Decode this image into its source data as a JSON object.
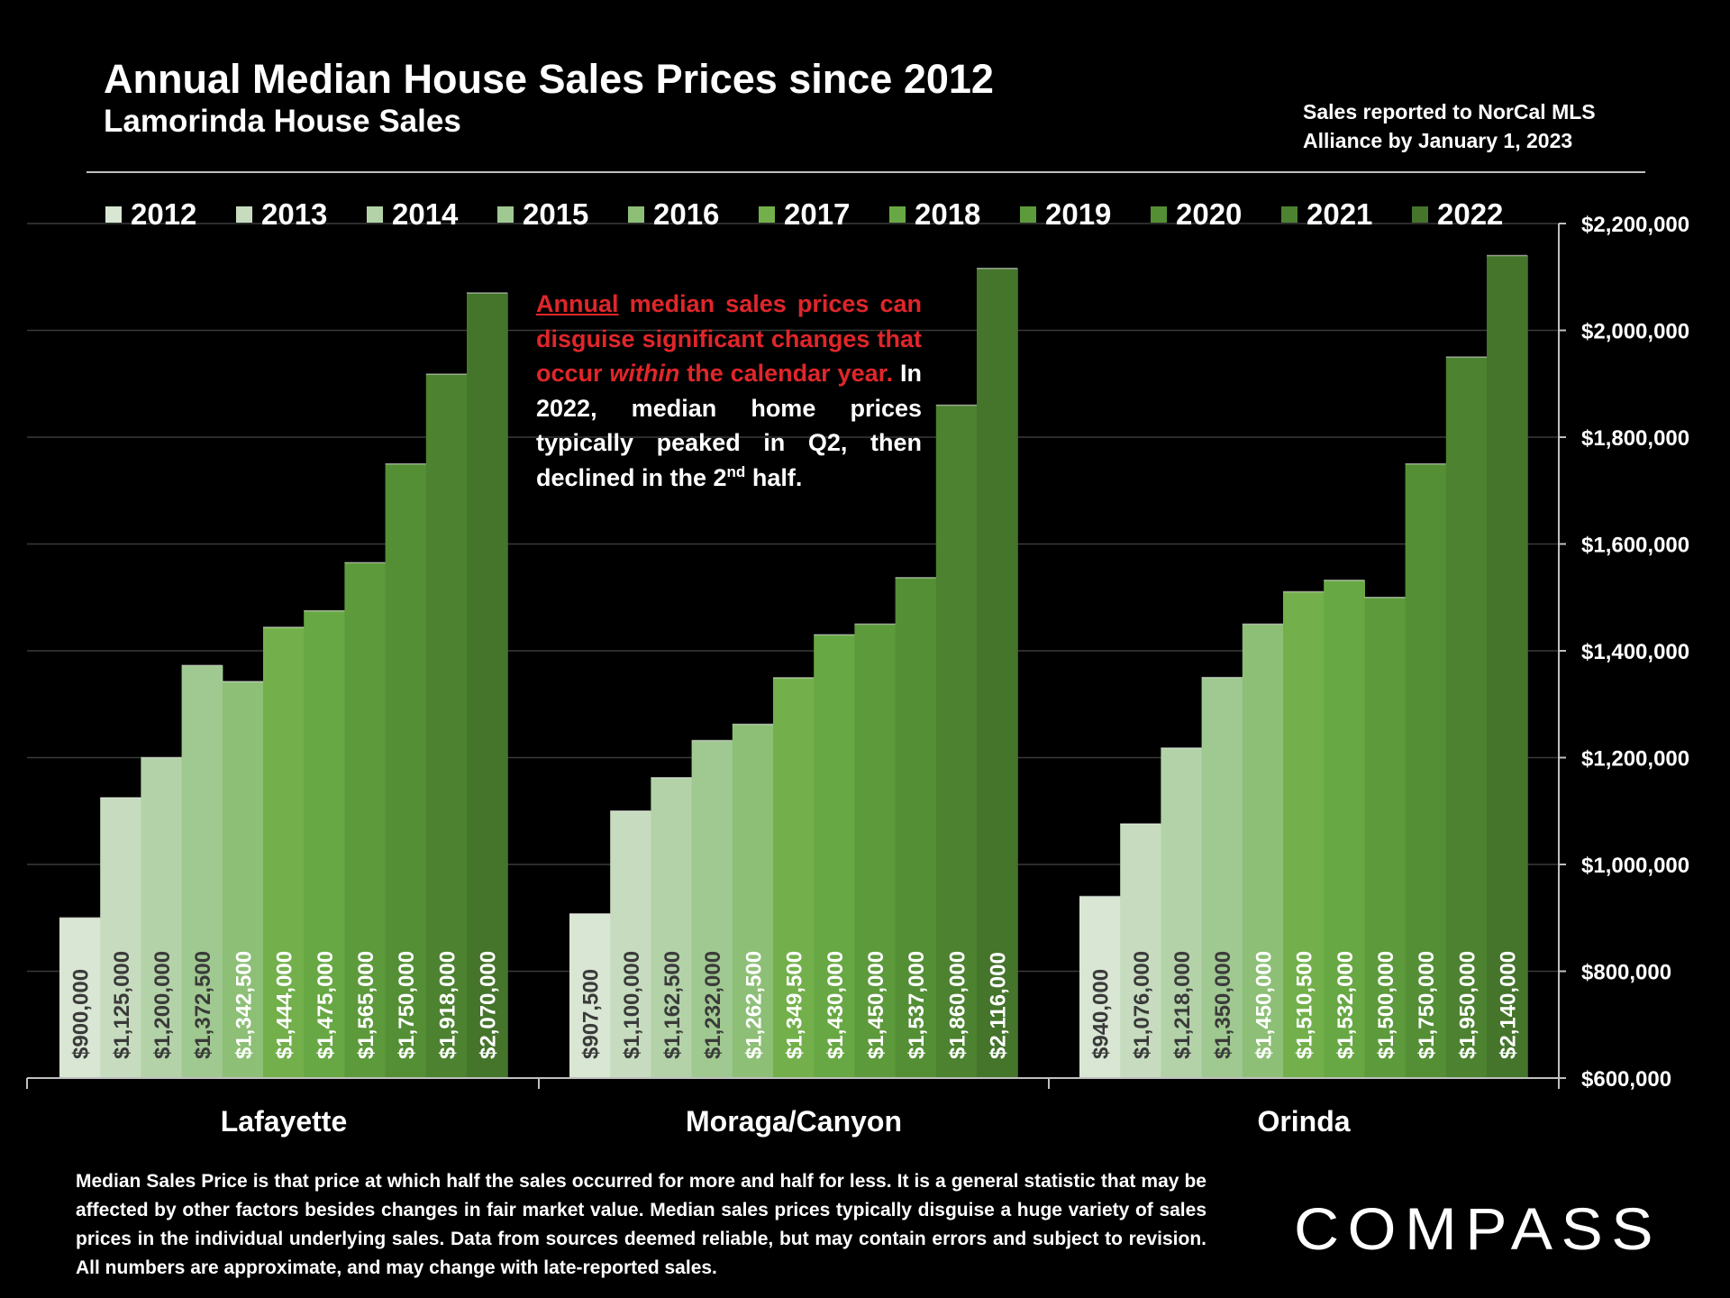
{
  "header": {
    "title": "Annual Median House Sales Prices since 2012",
    "subtitle": "Lamorinda House Sales",
    "source_line1": "Sales reported to NorCal MLS",
    "source_line2": "Alliance by January 1, 2023"
  },
  "annotation": {
    "red_underlined": "Annual",
    "red_1": " median sales prices can disguise significant changes that occur ",
    "red_italic": "within",
    "red_2": " the calendar year.",
    "white_1": " In 2022, median home prices typically peaked in Q2, then declined in the 2",
    "white_sup": "nd",
    "white_2": " half."
  },
  "footnote": "Median Sales Price is that price at which half the sales occurred for more and half for less. It is a general statistic that may be affected by other factors besides changes in fair market value. Median sales prices typically disguise a huge variety of sales prices in the individual underlying sales. Data from sources deemed reliable, but may contain errors and subject to revision.  All numbers are approximate, and may change with late-reported sales.",
  "logo": {
    "text": "COMPASS"
  },
  "colors": {
    "series": [
      "#d8e6d3",
      "#c7dcbf",
      "#b3d2a8",
      "#a0c891",
      "#8dbf76",
      "#73b04c",
      "#68a844",
      "#5d9a3c",
      "#548f35",
      "#4c8230",
      "#45742b"
    ],
    "background": "#000000",
    "annotation_red": "#e0262a"
  },
  "chart_data": {
    "type": "bar",
    "categories": [
      "Lafayette",
      "Moraga/Canyon",
      "Orinda"
    ],
    "series": [
      {
        "name": "2012",
        "values": [
          900000,
          907500,
          940000
        ],
        "labels": [
          "$900,000",
          "$907,500",
          "$940,000"
        ]
      },
      {
        "name": "2013",
        "values": [
          1125000,
          1100000,
          1076000
        ],
        "labels": [
          "$1,125,000",
          "$1,100,000",
          "$1,076,000"
        ]
      },
      {
        "name": "2014",
        "values": [
          1200000,
          1162500,
          1218000
        ],
        "labels": [
          "$1,200,000",
          "$1,162,500",
          "$1,218,000"
        ]
      },
      {
        "name": "2015",
        "values": [
          1372500,
          1232000,
          1350000
        ],
        "labels": [
          "$1,372,500",
          "$1,232,000",
          "$1,350,000"
        ]
      },
      {
        "name": "2016",
        "values": [
          1342500,
          1262500,
          1450000
        ],
        "labels": [
          "$1,342,500",
          "$1,262,500",
          "$1,450,000"
        ]
      },
      {
        "name": "2017",
        "values": [
          1444000,
          1349500,
          1510500
        ],
        "labels": [
          "$1,444,000",
          "$1,349,500",
          "$1,510,500"
        ]
      },
      {
        "name": "2018",
        "values": [
          1475000,
          1430000,
          1532000
        ],
        "labels": [
          "$1,475,000",
          "$1,430,000",
          "$1,532,000"
        ]
      },
      {
        "name": "2019",
        "values": [
          1565000,
          1450000,
          1500000
        ],
        "labels": [
          "$1,565,000",
          "$1,450,000",
          "$1,500,000"
        ]
      },
      {
        "name": "2020",
        "values": [
          1750000,
          1537000,
          1750000
        ],
        "labels": [
          "$1,750,000",
          "$1,537,000",
          "$1,750,000"
        ]
      },
      {
        "name": "2021",
        "values": [
          1918000,
          1860000,
          1950000
        ],
        "labels": [
          "$1,918,000",
          "$1,860,000",
          "$1,950,000"
        ]
      },
      {
        "name": "2022",
        "values": [
          2070000,
          2116000,
          2140000
        ],
        "labels": [
          "$2,070,000",
          "$2,116,000",
          "$2,140,000"
        ]
      }
    ],
    "ylim": [
      600000,
      2200000
    ],
    "yticks": [
      600000,
      800000,
      1000000,
      1200000,
      1400000,
      1600000,
      1800000,
      2000000,
      2200000
    ],
    "ytick_labels": [
      "$600,000",
      "$800,000",
      "$1,000,000",
      "$1,200,000",
      "$1,400,000",
      "$1,600,000",
      "$1,800,000",
      "$2,000,000",
      "$2,200,000"
    ],
    "y_axis_side": "right",
    "grid": true,
    "legend": "top",
    "data_labels": "inside-base-rotated"
  }
}
